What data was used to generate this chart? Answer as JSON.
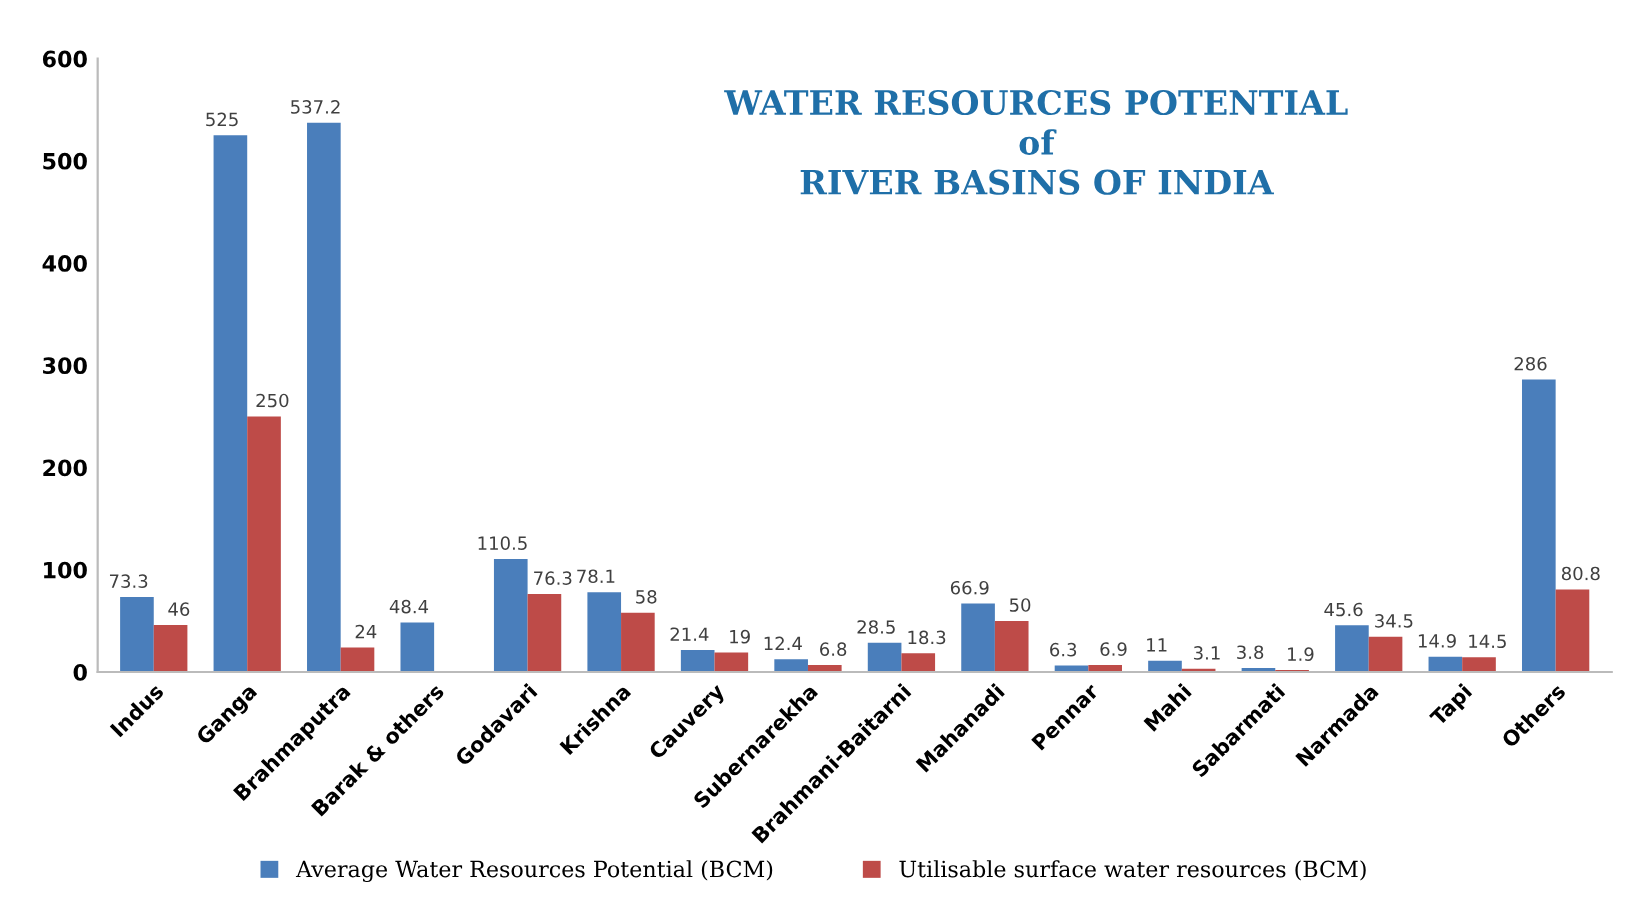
{
  "chart_data": {
    "type": "bar",
    "title": "WATER RESOURCES POTENTIAL\nof\nRIVER BASINS OF INDIA",
    "categories": [
      "Indus",
      "Ganga",
      "Brahmaputra",
      "Barak & others",
      "Godavari",
      "Krishna",
      "Cauvery",
      "Subernarekha",
      "Brahmani-Baitarni",
      "Mahanadi",
      "Pennar",
      "Mahi",
      "Sabarmati",
      "Narmada",
      "Tapi",
      "Others"
    ],
    "series": [
      {
        "name": "Average Water Resources Potential (BCM)",
        "color": "#4a7ebb",
        "values": [
          73.3,
          525,
          537.2,
          48.4,
          110.5,
          78.1,
          21.4,
          12.4,
          28.5,
          66.9,
          6.3,
          11,
          3.8,
          45.6,
          14.9,
          286
        ]
      },
      {
        "name": "Utilisable surface water resources (BCM)",
        "color": "#be4b48",
        "values": [
          46,
          250,
          24,
          null,
          76.3,
          58,
          19,
          6.8,
          18.3,
          50,
          6.9,
          3.1,
          1.9,
          34.5,
          14.5,
          80.8
        ]
      }
    ],
    "ylim": [
      0,
      600
    ],
    "yticks": [
      0,
      100,
      200,
      300,
      400,
      500,
      600
    ],
    "data_labels": true,
    "grid": false,
    "legend": "bottom"
  }
}
